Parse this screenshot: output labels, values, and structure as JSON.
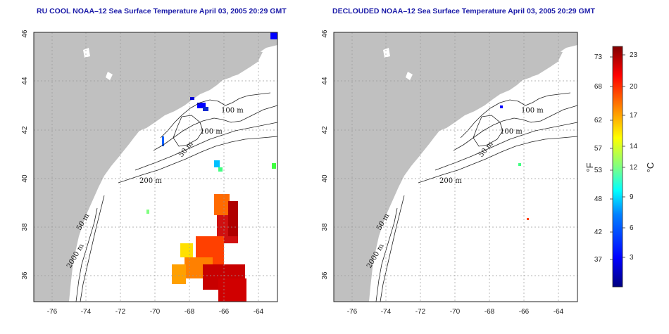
{
  "titles": {
    "left": "RU COOL NOAA–12 Sea Surface Temperature April 03, 2005 20:29 GMT",
    "right": "DECLOUDED NOAA–12 Sea Surface Temperature April 03, 2005 20:29 GMT"
  },
  "map": {
    "lon_ticks": [
      "-76",
      "-74",
      "-72",
      "-70",
      "-68",
      "-66",
      "-64"
    ],
    "lat_ticks": [
      "36",
      "38",
      "40",
      "42",
      "44",
      "46"
    ],
    "contour_labels": [
      "100 m",
      "100 m",
      "50 m",
      "200 m",
      "50 m",
      "2000 m"
    ],
    "land_color": "#c0c0c0",
    "ocean_color": "#ffffff",
    "grid": "dotted"
  },
  "colorbar": {
    "unit_left": "°F",
    "unit_right": "°C",
    "fahrenheit_ticks": [
      "73",
      "68",
      "62",
      "57",
      "53",
      "48",
      "42",
      "37"
    ],
    "celsius_ticks": [
      "23",
      "20",
      "17",
      "14",
      "12",
      "9",
      "6",
      "3"
    ],
    "gradient": [
      "#00007f",
      "#0000ff",
      "#0080ff",
      "#00ffff",
      "#80ff80",
      "#ffff00",
      "#ff8000",
      "#ff0000",
      "#7f0000"
    ]
  }
}
